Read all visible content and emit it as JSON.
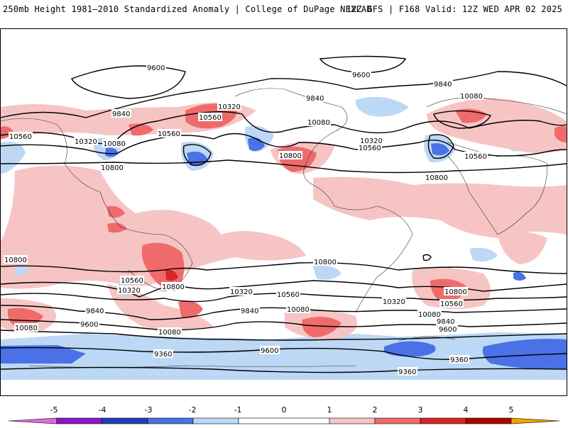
{
  "header": {
    "left_title": "250mb Height 1981–2010 Standardized Anomaly | College of DuPage NEXLAB",
    "right_title": "12Z GFS | F168 Valid: 12Z WED APR 02 2025"
  },
  "colors": {
    "neg5": "#e06ae0",
    "neg4": "#8a18c8",
    "neg3": "#1f3fb8",
    "neg2": "#4a72e6",
    "neg1": "#bcd8f5",
    "zero": "#ffffff",
    "pos1": "#f7c4c4",
    "pos2": "#ef6b6b",
    "pos3": "#d42828",
    "pos4": "#b00000",
    "pos5": "#f5a300"
  },
  "colorbar": {
    "ticks": [
      "-5",
      "-4",
      "-3",
      "-2",
      "-1",
      "0",
      "1",
      "2",
      "3",
      "4",
      "5"
    ]
  },
  "contour_labels": {
    "n_9600_a": "9600",
    "n_9600_b": "9600",
    "n_9840_a": "9840",
    "n_9840_b": "9840",
    "n_9840_c": "9840",
    "n_10080_a": "10080",
    "n_10080_b": "10080",
    "n_10080_c": "10080",
    "n_10320_a": "10320",
    "n_10320_b": "10320",
    "n_10320_c": "10320",
    "n_10560_a": "10560",
    "n_10560_b": "10560",
    "n_10560_c": "10560",
    "n_10560_d": "10560",
    "n_10800_a": "10800",
    "n_10800_b": "10800",
    "n_10800_c": "10800",
    "s_10800_a": "10800",
    "s_10800_b": "10800",
    "s_10800_c": "10800",
    "s_10800_d": "10800",
    "s_10560_a": "10560",
    "s_10560_b": "10560",
    "s_10560_c": "10560",
    "s_10320_a": "10320",
    "s_10320_b": "10320",
    "s_10320_c": "10320",
    "s_10080_a": "10080",
    "s_10080_b": "10080",
    "s_10080_c": "10080",
    "s_10080_d": "10080",
    "s_9840_a": "9840",
    "s_9840_b": "9840",
    "s_9840_c": "9840",
    "s_9600_a": "9600",
    "s_9600_b": "9600",
    "s_9600_c": "9600",
    "s_9360_a": "9360",
    "s_9360_b": "9360",
    "s_9360_c": "9360"
  }
}
